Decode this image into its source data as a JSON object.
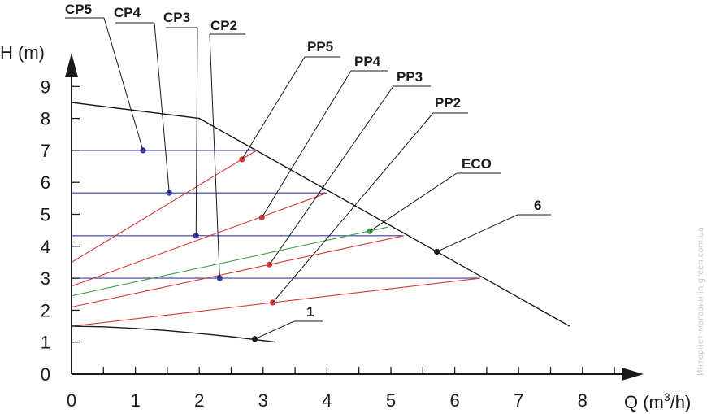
{
  "chart_data": {
    "type": "line",
    "title": "",
    "xlabel": "Q (m",
    "xlabel_sup": "3",
    "xlabel_tail": "/h)",
    "ylabel": "H (m)",
    "xlim": [
      0,
      8.7
    ],
    "ylim": [
      0,
      9.8
    ],
    "x_ticks": [
      "0",
      "1",
      "2",
      "3",
      "4",
      "5",
      "6",
      "7",
      "8"
    ],
    "y_ticks": [
      "0",
      "1",
      "2",
      "3",
      "4",
      "5",
      "6",
      "7",
      "8",
      "9"
    ],
    "grid": false,
    "colors": {
      "blue": "#3a3aa8",
      "red": "#d23a3a",
      "green": "#3fa04f",
      "black": "#1a1a1a"
    },
    "series": [
      {
        "name": "6",
        "color": "black",
        "points": [
          [
            0,
            8.5
          ],
          [
            2,
            8
          ],
          [
            7.8,
            1.5
          ]
        ]
      },
      {
        "name": "CP5",
        "color": "blue",
        "points": [
          [
            0,
            7
          ],
          [
            2.9,
            7
          ]
        ]
      },
      {
        "name": "CP4",
        "color": "blue",
        "points": [
          [
            0,
            5.67
          ],
          [
            4,
            5.67
          ]
        ]
      },
      {
        "name": "CP3",
        "color": "blue",
        "points": [
          [
            0,
            4.33
          ],
          [
            5.2,
            4.33
          ]
        ]
      },
      {
        "name": "CP2",
        "color": "blue",
        "points": [
          [
            0,
            3
          ],
          [
            6.4,
            3
          ]
        ]
      },
      {
        "name": "PP5",
        "color": "red",
        "points": [
          [
            0,
            3.5
          ],
          [
            2.9,
            7
          ]
        ]
      },
      {
        "name": "PP4",
        "color": "red",
        "points": [
          [
            0,
            2.75
          ],
          [
            4,
            5.67
          ]
        ]
      },
      {
        "name": "ECO",
        "color": "green",
        "points": [
          [
            0,
            2.45
          ],
          [
            4.95,
            4.6
          ]
        ]
      },
      {
        "name": "PP3",
        "color": "red",
        "points": [
          [
            0,
            2.1
          ],
          [
            5.2,
            4.33
          ]
        ]
      },
      {
        "name": "PP2",
        "color": "red",
        "points": [
          [
            0,
            1.5
          ],
          [
            6.4,
            3
          ]
        ]
      },
      {
        "name": "1",
        "color": "black",
        "points": [
          [
            0,
            1.5
          ],
          [
            0.5,
            1.48
          ],
          [
            1,
            1.43
          ],
          [
            1.5,
            1.36
          ],
          [
            2,
            1.27
          ],
          [
            2.5,
            1.17
          ],
          [
            3.2,
            1.0
          ]
        ]
      }
    ],
    "markers": [
      {
        "series": "CP5",
        "x": 1.12,
        "y": 7.0,
        "color": "blue"
      },
      {
        "series": "CP4",
        "x": 1.53,
        "y": 5.67,
        "color": "blue"
      },
      {
        "series": "CP3",
        "x": 1.95,
        "y": 4.33,
        "color": "blue"
      },
      {
        "series": "CP2",
        "x": 2.32,
        "y": 3.0,
        "color": "blue"
      },
      {
        "series": "PP5",
        "x": 2.67,
        "y": 6.72,
        "color": "red"
      },
      {
        "series": "PP4",
        "x": 2.98,
        "y": 4.9,
        "color": "red"
      },
      {
        "series": "PP3",
        "x": 3.1,
        "y": 3.43,
        "color": "red"
      },
      {
        "series": "PP2",
        "x": 3.15,
        "y": 2.24,
        "color": "red"
      },
      {
        "series": "ECO",
        "x": 4.67,
        "y": 4.47,
        "color": "green"
      },
      {
        "series": "6",
        "x": 5.72,
        "y": 3.83,
        "color": "black"
      },
      {
        "series": "1",
        "x": 2.87,
        "y": 1.1,
        "color": "black"
      }
    ],
    "annotations": [
      {
        "text": "CP5",
        "marker": 0
      },
      {
        "text": "CP4",
        "marker": 1
      },
      {
        "text": "CP3",
        "marker": 2
      },
      {
        "text": "CP2",
        "marker": 3
      },
      {
        "text": "PP5",
        "marker": 4
      },
      {
        "text": "PP4",
        "marker": 5
      },
      {
        "text": "PP3",
        "marker": 6
      },
      {
        "text": "PP2",
        "marker": 7
      },
      {
        "text": "ECO",
        "marker": 8
      },
      {
        "text": "6",
        "marker": 9
      },
      {
        "text": "1",
        "marker": 10
      }
    ]
  },
  "watermark": "Интернет-магазин  in-green.com.ua"
}
